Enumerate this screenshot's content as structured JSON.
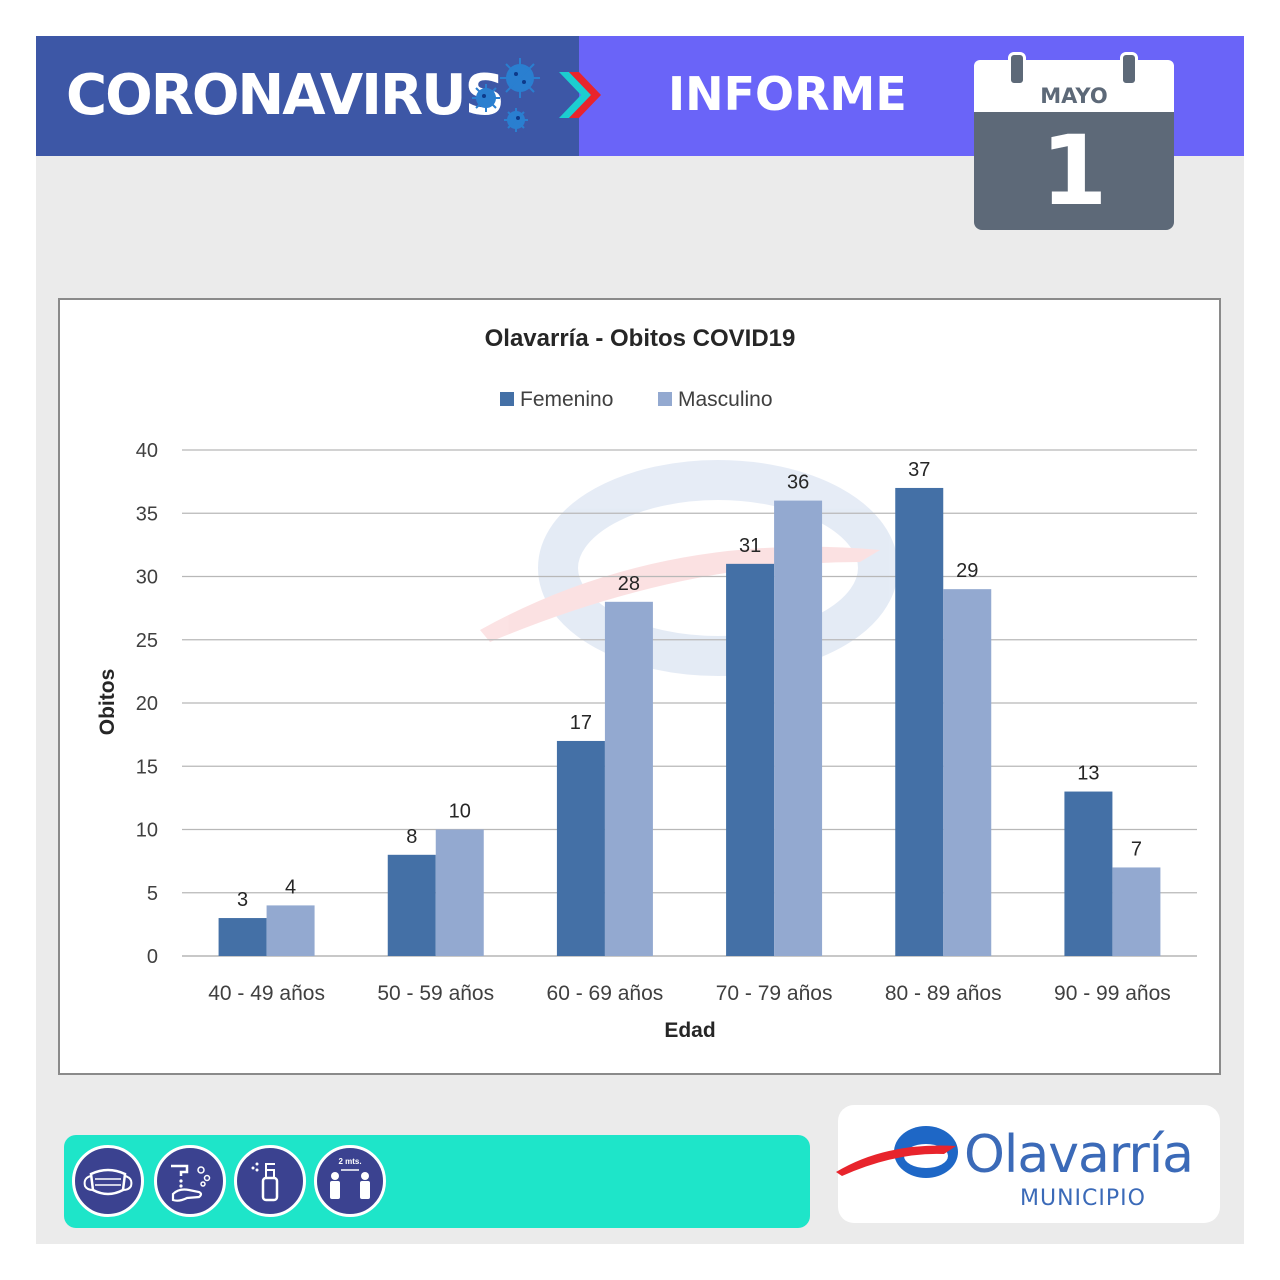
{
  "header": {
    "brand": "CORONAVIRUS",
    "report": "INFORME",
    "calendar": {
      "month": "MAYO",
      "day": "1"
    }
  },
  "colors": {
    "banner_left": "#3d57a6",
    "banner_right": "#6a64f8",
    "femenino": "#4470a6",
    "masculino": "#93a9d0",
    "tips_bar": "#1ee5c9",
    "logo_blue": "#3b6ab8"
  },
  "chart_data": {
    "type": "bar",
    "title": "Olavarría - Obitos COVID19",
    "xlabel": "Edad",
    "ylabel": "Obitos",
    "categories": [
      "40 - 49 años",
      "50 - 59 años",
      "60 - 69 años",
      "70 - 79 años",
      "80 - 89 años",
      "90 - 99 años"
    ],
    "series": [
      {
        "name": "Femenino",
        "values": [
          3,
          8,
          17,
          31,
          37,
          13
        ]
      },
      {
        "name": "Masculino",
        "values": [
          4,
          10,
          28,
          36,
          29,
          7
        ]
      }
    ],
    "ylim": [
      0,
      40
    ],
    "yticks": [
      0,
      5,
      10,
      15,
      20,
      25,
      30,
      35,
      40
    ],
    "grid": true,
    "legend": "top"
  },
  "tips": {
    "icons": [
      "face-mask-icon",
      "hand-washing-icon",
      "sanitizer-spray-icon",
      "social-distance-icon"
    ],
    "distance_label": "2 mts."
  },
  "logo": {
    "name": "Olavarría",
    "sub": "MUNICIPIO"
  }
}
